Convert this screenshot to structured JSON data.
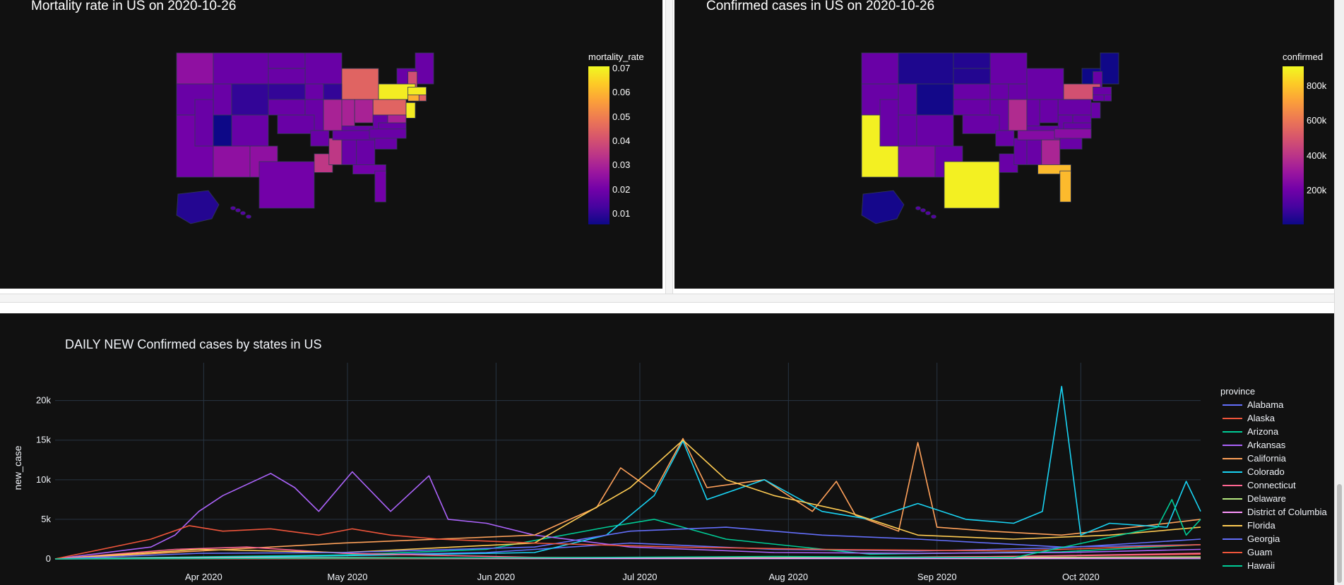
{
  "colors": {
    "background": "#111111",
    "grid": "#283442",
    "text": "#f2f5fa",
    "plasma": [
      "#0d0887",
      "#46039f",
      "#7201a8",
      "#9c179e",
      "#bd3786",
      "#d8576b",
      "#ed7953",
      "#fb9f3a",
      "#fdca26",
      "#f0f921"
    ]
  },
  "left_map": {
    "title": "Mortality rate in US on 2020-10-26",
    "colorbar_title": "mortality_rate",
    "colorbar_ticks": [
      "0.07",
      "0.06",
      "0.05",
      "0.04",
      "0.03",
      "0.02",
      "0.01"
    ]
  },
  "right_map": {
    "title": "Confirmed cases in US on 2020-10-26",
    "colorbar_title": "confirmed",
    "colorbar_ticks": [
      "800k",
      "600k",
      "400k",
      "200k"
    ]
  },
  "chart_data": [
    {
      "type": "choropleth",
      "title": "Mortality rate in US on 2020-10-26",
      "color_variable": "mortality_rate",
      "color_range": [
        0.005,
        0.072
      ],
      "values": {
        "New Jersey": 0.07,
        "New York": 0.07,
        "Connecticut": 0.06,
        "Massachusetts": 0.07,
        "Rhode Island": 0.045,
        "New Hampshire": 0.04,
        "Michigan": 0.045,
        "Pennsylvania": 0.045,
        "Mississippi": 0.035,
        "Louisiana": 0.035,
        "Illinois": 0.03,
        "Indiana": 0.03,
        "Arizona": 0.025,
        "New Mexico": 0.025,
        "Ohio": 0.03,
        "Maryland": 0.03,
        "Washington": 0.025,
        "Utah": 0.005,
        "Alaska": 0.008,
        "Nebraska": 0.01,
        "Wisconsin": 0.01,
        "Wyoming": 0.01,
        "Texas": 0.02,
        "California": 0.02,
        "Florida": 0.02
      }
    },
    {
      "type": "choropleth",
      "title": "Confirmed cases in US on 2020-10-26",
      "color_variable": "confirmed",
      "color_range": [
        0,
        920000
      ],
      "values": {
        "California": 900000,
        "Texas": 900000,
        "Florida": 780000,
        "New York": 490000,
        "Georgia": 350000,
        "Illinois": 370000,
        "Arizona": 240000,
        "North Carolina": 260000,
        "Tennessee": 250000,
        "Wyoming": 10000,
        "Vermont": 2000,
        "Maine": 6000,
        "North Dakota": 40000,
        "South Dakota": 40000,
        "Montana": 30000,
        "Alaska": 15000
      }
    },
    {
      "type": "line",
      "title": "DAILY NEW Confirmed cases by states in US",
      "xlabel": "",
      "ylabel": "new_case",
      "x_range": [
        "2020-03-01",
        "2020-10-26"
      ],
      "ylim": [
        0,
        23000
      ],
      "x_ticks": [
        "Apr 2020",
        "May 2020",
        "Jun 2020",
        "Jul 2020",
        "Aug 2020",
        "Sep 2020",
        "Oct 2020"
      ],
      "y_ticks": [
        "0",
        "5k",
        "10k",
        "15k",
        "20k"
      ],
      "legend_title": "province",
      "legend_position": "right",
      "grid": true,
      "series": [
        {
          "name": "Alabama",
          "color": "#636efa",
          "points": [
            [
              0,
              0
            ],
            [
              30,
              200
            ],
            [
              60,
              500
            ],
            [
              90,
              800
            ],
            [
              120,
              2000
            ],
            [
              150,
              1200
            ],
            [
              180,
              1000
            ],
            [
              210,
              1400
            ],
            [
              239,
              2500
            ]
          ]
        },
        {
          "name": "Alaska",
          "color": "#EF553B",
          "points": [
            [
              0,
              0
            ],
            [
              100,
              50
            ],
            [
              150,
              150
            ],
            [
              200,
              300
            ],
            [
              239,
              600
            ]
          ]
        },
        {
          "name": "Arizona",
          "color": "#00cc96",
          "points": [
            [
              0,
              0
            ],
            [
              60,
              500
            ],
            [
              90,
              1200
            ],
            [
              115,
              4000
            ],
            [
              125,
              5000
            ],
            [
              140,
              2500
            ],
            [
              170,
              600
            ],
            [
              210,
              900
            ],
            [
              239,
              1800
            ]
          ]
        },
        {
          "name": "Arkansas",
          "color": "#ab63fa",
          "points": [
            [
              0,
              0
            ],
            [
              20,
              1500
            ],
            [
              25,
              3000
            ],
            [
              30,
              6000
            ],
            [
              35,
              8000
            ],
            [
              45,
              10800
            ],
            [
              50,
              9000
            ],
            [
              55,
              6000
            ],
            [
              62,
              11000
            ],
            [
              70,
              6000
            ],
            [
              78,
              10500
            ],
            [
              82,
              5000
            ],
            [
              90,
              4500
            ],
            [
              100,
              3000
            ],
            [
              120,
              1500
            ],
            [
              150,
              800
            ],
            [
              180,
              700
            ],
            [
              210,
              800
            ],
            [
              239,
              1200
            ]
          ]
        },
        {
          "name": "California",
          "color": "#FFA15A",
          "points": [
            [
              0,
              0
            ],
            [
              30,
              1000
            ],
            [
              60,
              2000
            ],
            [
              100,
              3000
            ],
            [
              113,
              6500
            ],
            [
              118,
              11500
            ],
            [
              125,
              8500
            ],
            [
              131,
              15200
            ],
            [
              136,
              9000
            ],
            [
              148,
              10000
            ],
            [
              158,
              6000
            ],
            [
              163,
              9800
            ],
            [
              167,
              5500
            ],
            [
              176,
              3500
            ],
            [
              180,
              14700
            ],
            [
              184,
              4000
            ],
            [
              195,
              3500
            ],
            [
              210,
              3000
            ],
            [
              225,
              4000
            ],
            [
              239,
              5000
            ]
          ]
        },
        {
          "name": "Colorado",
          "color": "#19d3f3",
          "points": [
            [
              0,
              0
            ],
            [
              60,
              400
            ],
            [
              100,
              800
            ],
            [
              115,
              3000
            ],
            [
              125,
              8000
            ],
            [
              131,
              14900
            ],
            [
              136,
              7500
            ],
            [
              148,
              10000
            ],
            [
              160,
              6000
            ],
            [
              170,
              5000
            ],
            [
              180,
              7000
            ],
            [
              190,
              5000
            ],
            [
              200,
              4500
            ],
            [
              206,
              6000
            ],
            [
              210,
              21800
            ],
            [
              214,
              3000
            ],
            [
              220,
              4500
            ],
            [
              232,
              4000
            ],
            [
              236,
              9800
            ],
            [
              239,
              6000
            ]
          ]
        },
        {
          "name": "Connecticut",
          "color": "#FF6692",
          "points": [
            [
              0,
              0
            ],
            [
              25,
              1200
            ],
            [
              40,
              1500
            ],
            [
              60,
              700
            ],
            [
              100,
              200
            ],
            [
              150,
              150
            ],
            [
              200,
              300
            ],
            [
              239,
              700
            ]
          ]
        },
        {
          "name": "Delaware",
          "color": "#B6E880",
          "points": [
            [
              0,
              0
            ],
            [
              40,
              200
            ],
            [
              100,
              100
            ],
            [
              170,
              150
            ],
            [
              239,
              250
            ]
          ]
        },
        {
          "name": "District of Columbia",
          "color": "#FF97FF",
          "points": [
            [
              0,
              0
            ],
            [
              40,
              150
            ],
            [
              100,
              80
            ],
            [
              200,
              60
            ],
            [
              239,
              90
            ]
          ]
        },
        {
          "name": "Florida",
          "color": "#FECB52",
          "points": [
            [
              0,
              0
            ],
            [
              30,
              1200
            ],
            [
              60,
              800
            ],
            [
              100,
              2000
            ],
            [
              120,
              9000
            ],
            [
              131,
              15000
            ],
            [
              140,
              10000
            ],
            [
              150,
              8000
            ],
            [
              165,
              6000
            ],
            [
              180,
              3000
            ],
            [
              200,
              2500
            ],
            [
              220,
              3000
            ],
            [
              239,
              4000
            ]
          ]
        },
        {
          "name": "Georgia",
          "color": "#636efa",
          "points": [
            [
              0,
              0
            ],
            [
              30,
              700
            ],
            [
              60,
              800
            ],
            [
              100,
              1500
            ],
            [
              120,
              3500
            ],
            [
              140,
              4000
            ],
            [
              160,
              3000
            ],
            [
              180,
              2500
            ],
            [
              210,
              1500
            ],
            [
              239,
              1800
            ]
          ]
        },
        {
          "name": "Guam",
          "color": "#EF553B",
          "points": [
            [
              0,
              0
            ],
            [
              20,
              2500
            ],
            [
              28,
              4200
            ],
            [
              35,
              3500
            ],
            [
              45,
              3800
            ],
            [
              55,
              3000
            ],
            [
              62,
              3800
            ],
            [
              70,
              3000
            ],
            [
              80,
              2500
            ],
            [
              100,
              2000
            ],
            [
              130,
              1500
            ],
            [
              160,
              1200
            ],
            [
              200,
              1000
            ],
            [
              239,
              1800
            ]
          ]
        },
        {
          "name": "Hawaii",
          "color": "#00cc96",
          "points": [
            [
              0,
              0
            ],
            [
              50,
              100
            ],
            [
              100,
              150
            ],
            [
              150,
              300
            ],
            [
              200,
              150
            ],
            [
              230,
              4000
            ],
            [
              233,
              7500
            ],
            [
              236,
              3000
            ],
            [
              239,
              5000
            ]
          ]
        }
      ]
    }
  ]
}
